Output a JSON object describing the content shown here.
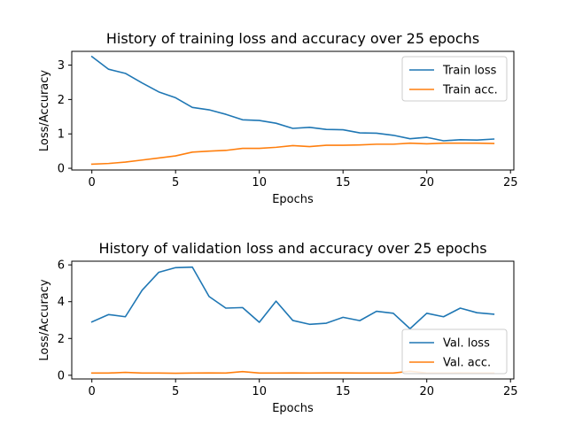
{
  "colors": {
    "blue": "#1f77b4",
    "orange": "#ff7f0e"
  },
  "chart_data": [
    {
      "type": "line",
      "title": "History of training loss and accuracy over 25 epochs",
      "xlabel": "Epochs",
      "ylabel": "Loss/Accuracy",
      "xlim": [
        -1.2,
        25.2
      ],
      "ylim": [
        -0.05,
        3.4
      ],
      "xticks": [
        0,
        5,
        10,
        15,
        20,
        25
      ],
      "yticks": [
        0,
        1,
        2,
        3
      ],
      "legend_position": "top-right",
      "x": [
        0,
        1,
        2,
        3,
        4,
        5,
        6,
        7,
        8,
        9,
        10,
        11,
        12,
        13,
        14,
        15,
        16,
        17,
        18,
        19,
        20,
        21,
        22,
        23,
        24
      ],
      "series": [
        {
          "name": "Train loss",
          "color": "#1f77b4",
          "values": [
            3.25,
            2.88,
            2.76,
            2.48,
            2.22,
            2.05,
            1.77,
            1.7,
            1.57,
            1.41,
            1.39,
            1.31,
            1.16,
            1.19,
            1.13,
            1.12,
            1.03,
            1.02,
            0.96,
            0.86,
            0.9,
            0.8,
            0.83,
            0.82,
            0.85
          ]
        },
        {
          "name": "Train acc.",
          "color": "#ff7f0e",
          "values": [
            0.12,
            0.14,
            0.18,
            0.24,
            0.3,
            0.36,
            0.47,
            0.5,
            0.52,
            0.58,
            0.58,
            0.61,
            0.66,
            0.63,
            0.67,
            0.67,
            0.68,
            0.7,
            0.7,
            0.73,
            0.71,
            0.73,
            0.73,
            0.73,
            0.72
          ]
        }
      ]
    },
    {
      "type": "line",
      "title": "History of validation loss and accuracy over 25 epochs",
      "xlabel": "Epochs",
      "ylabel": "Loss/Accuracy",
      "xlim": [
        -1.2,
        25.2
      ],
      "ylim": [
        -0.2,
        6.2
      ],
      "xticks": [
        0,
        5,
        10,
        15,
        20,
        25
      ],
      "yticks": [
        0,
        2,
        4,
        6
      ],
      "legend_position": "lower-right",
      "x": [
        0,
        1,
        2,
        3,
        4,
        5,
        6,
        7,
        8,
        9,
        10,
        11,
        12,
        13,
        14,
        15,
        16,
        17,
        18,
        19,
        20,
        21,
        22,
        23,
        24
      ],
      "series": [
        {
          "name": "Val. loss",
          "color": "#1f77b4",
          "values": [
            2.9,
            3.3,
            3.18,
            4.62,
            5.6,
            5.85,
            5.88,
            4.28,
            3.65,
            3.68,
            2.88,
            4.03,
            2.98,
            2.77,
            2.83,
            3.15,
            2.97,
            3.48,
            3.37,
            2.53,
            3.37,
            3.18,
            3.65,
            3.4,
            3.32
          ]
        },
        {
          "name": "Val. acc.",
          "color": "#ff7f0e",
          "values": [
            0.12,
            0.12,
            0.16,
            0.12,
            0.12,
            0.11,
            0.12,
            0.13,
            0.12,
            0.2,
            0.12,
            0.12,
            0.13,
            0.12,
            0.13,
            0.13,
            0.12,
            0.12,
            0.12,
            0.22,
            0.12,
            0.12,
            0.13,
            0.12,
            0.12
          ]
        }
      ]
    }
  ]
}
